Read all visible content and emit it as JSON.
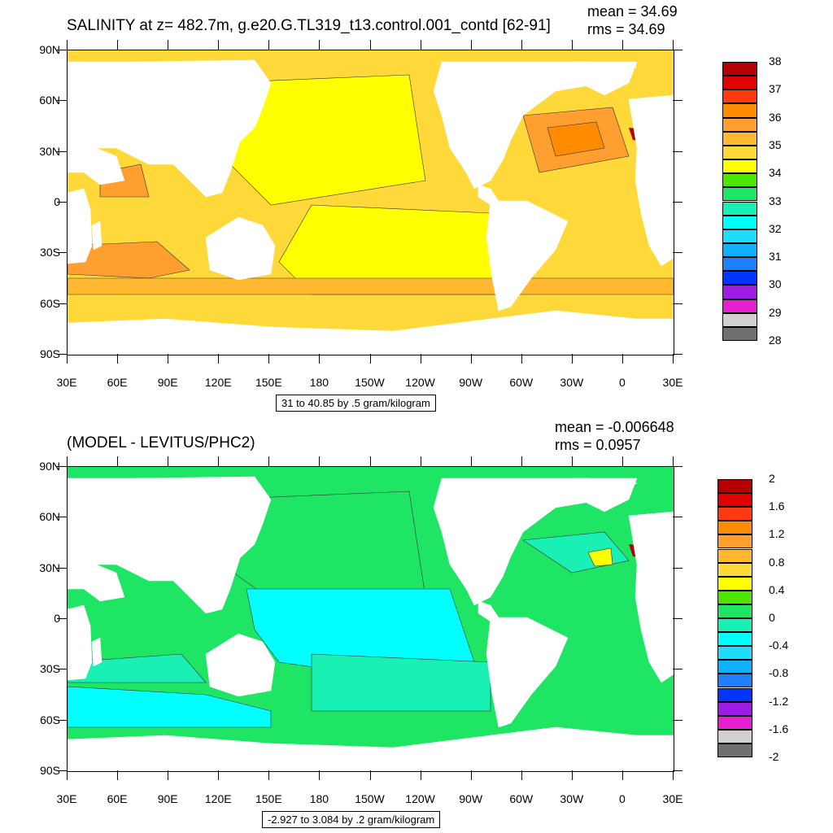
{
  "panels": [
    {
      "title": "SALINITY at z= 482.7m, g.e20.G.TL319_t13.control.001_contd [62-91]",
      "mean": "mean = 34.69",
      "rms": "rms = 34.69",
      "contour_info": "31 to 40.85 by .5 gram/kilogram",
      "lat_labels": [
        "90N",
        "60N",
        "30N",
        "0",
        "30S",
        "60S",
        "90S"
      ],
      "lon_labels": [
        "30E",
        "60E",
        "90E",
        "120E",
        "150E",
        "180",
        "150W",
        "120W",
        "90W",
        "60W",
        "30W",
        "0",
        "30E"
      ],
      "colorbar": {
        "labels": [
          "38",
          "37",
          "36",
          "35",
          "34",
          "33",
          "32",
          "31",
          "30",
          "29",
          "28"
        ],
        "colors": [
          "#b40000",
          "#e00000",
          "#ff3a10",
          "#ff8c00",
          "#ff9f30",
          "#ffb830",
          "#ffd93a",
          "#ffff00",
          "#4be600",
          "#1ee564",
          "#18f0b4",
          "#00ffff",
          "#1edcff",
          "#0fb0ff",
          "#1e80ff",
          "#0036ff",
          "#9c1ce6",
          "#e61ed2",
          "#d0d0d0",
          "#707070"
        ]
      },
      "field_colors": {
        "ocean_a": "#ffd93a",
        "ocean_b": "#ffff00",
        "ocean_c": "#ffb830",
        "ocean_d": "#ff9f30",
        "ocean_e": "#ff8c00",
        "high": "#b40000",
        "low": "#4be600"
      }
    },
    {
      "title": "(MODEL - LEVITUS/PHC2)",
      "mean": "mean = -0.006648",
      "rms": "rms = 0.0957",
      "contour_info": "-2.927 to 3.084 by .2 gram/kilogram",
      "lat_labels": [
        "90N",
        "60N",
        "30N",
        "0",
        "30S",
        "60S",
        "90S"
      ],
      "lon_labels": [
        "30E",
        "60E",
        "90E",
        "120E",
        "150E",
        "180",
        "150W",
        "120W",
        "90W",
        "60W",
        "30W",
        "0",
        "30E"
      ],
      "colorbar": {
        "labels": [
          "2",
          "1.6",
          "1.2",
          "0.8",
          "0.4",
          "0",
          "-0.4",
          "-0.8",
          "-1.2",
          "-1.6",
          "-2"
        ],
        "colors": [
          "#b40000",
          "#e00000",
          "#ff3a10",
          "#ff8c00",
          "#ff9f30",
          "#ffb830",
          "#ffd93a",
          "#ffff00",
          "#4be600",
          "#1ee564",
          "#18f0b4",
          "#00ffff",
          "#1edcff",
          "#0fb0ff",
          "#1e80ff",
          "#0036ff",
          "#9c1ce6",
          "#e61ed2",
          "#d0d0d0",
          "#707070"
        ]
      },
      "field_colors": {
        "ocean_a": "#1ee564",
        "ocean_b": "#18f0b4",
        "ocean_c": "#00ffff",
        "ocean_d": "#4be600",
        "ocean_e": "#ffff00",
        "high": "#b40000",
        "low": "#1edcff"
      }
    }
  ]
}
